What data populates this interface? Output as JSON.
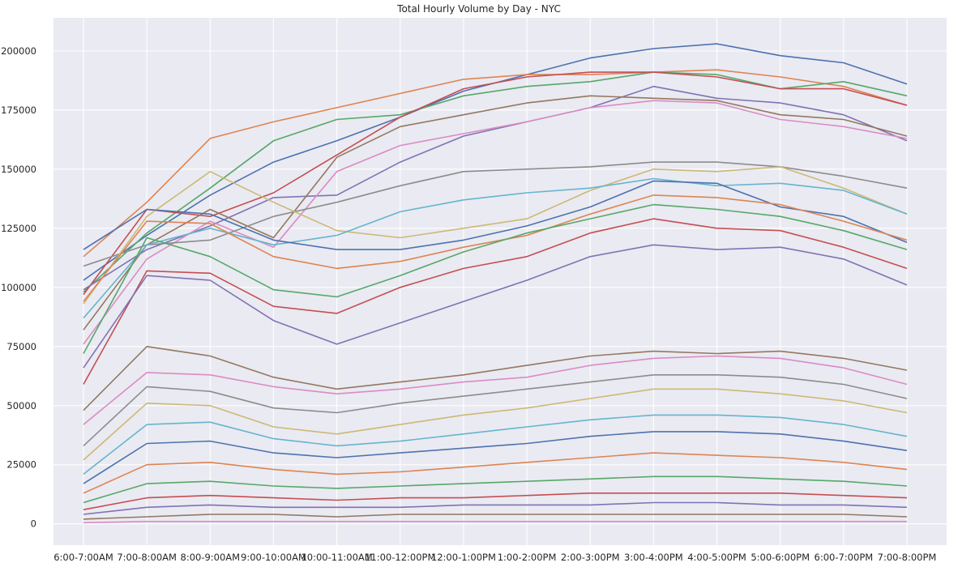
{
  "chart_data": {
    "type": "line",
    "title": "Total Hourly Volume by Day - NYC",
    "xlabel": "",
    "ylabel": "",
    "grid": true,
    "style": "seaborn-darkgrid",
    "background": "#EAEAF2",
    "x": [
      "6:00-7:00AM",
      "7:00-8:00AM",
      "8:00-9:00AM",
      "9:00-10:00AM",
      "10:00-11:00AM",
      "11:00-12:00PM",
      "12:00-1:00PM",
      "1:00-2:00PM",
      "2:00-3:00PM",
      "3:00-4:00PM",
      "4:00-5:00PM",
      "5:00-6:00PM",
      "6:00-7:00PM",
      "7:00-8:00PM"
    ],
    "ylim": [
      -9000,
      214000
    ],
    "yticks": [
      0,
      25000,
      50000,
      75000,
      100000,
      125000,
      150000,
      175000,
      200000
    ],
    "palette": [
      "#4C72B0",
      "#DD8452",
      "#55A868",
      "#C44E52",
      "#8172B3",
      "#937860",
      "#DA8BC3",
      "#8C8C8C",
      "#CCB974",
      "#64B5CD"
    ],
    "series": [
      {
        "values": [
          103000,
          122000,
          139000,
          153000,
          162000,
          172000,
          183000,
          190000,
          197000,
          201000,
          203000,
          198000,
          195000,
          186000
        ]
      },
      {
        "values": [
          113000,
          136000,
          163000,
          170000,
          176000,
          182000,
          188000,
          190000,
          190000,
          191000,
          192000,
          189000,
          185000,
          177000
        ]
      },
      {
        "values": [
          98000,
          123000,
          142000,
          162000,
          171000,
          173000,
          181000,
          185000,
          187000,
          191000,
          190000,
          184000,
          187000,
          181000
        ]
      },
      {
        "values": [
          97000,
          133000,
          130000,
          140000,
          156000,
          172000,
          184000,
          189000,
          191000,
          191000,
          189000,
          184000,
          184000,
          177000
        ]
      },
      {
        "values": [
          99000,
          116000,
          126000,
          138000,
          139000,
          153000,
          164000,
          170000,
          176000,
          185000,
          180000,
          178000,
          173000,
          162000
        ]
      },
      {
        "values": [
          82000,
          118000,
          133000,
          121000,
          155000,
          168000,
          173000,
          178000,
          181000,
          180000,
          179000,
          173000,
          171000,
          164000
        ]
      },
      {
        "values": [
          76000,
          112000,
          128000,
          117000,
          149000,
          160000,
          165000,
          170000,
          176000,
          179000,
          178000,
          171000,
          168000,
          163000
        ]
      },
      {
        "values": [
          109000,
          118000,
          120000,
          130000,
          136000,
          143000,
          149000,
          150000,
          151000,
          153000,
          153000,
          151000,
          147000,
          142000
        ]
      },
      {
        "values": [
          93000,
          130000,
          149000,
          136000,
          124000,
          121000,
          125000,
          129000,
          141000,
          150000,
          149000,
          151000,
          142000,
          131000
        ]
      },
      {
        "values": [
          87000,
          118000,
          125000,
          118000,
          122000,
          132000,
          137000,
          140000,
          142000,
          146000,
          143000,
          144000,
          141000,
          131000
        ]
      },
      {
        "values": [
          116000,
          133000,
          131000,
          120000,
          116000,
          116000,
          120000,
          126000,
          134000,
          145000,
          144000,
          134000,
          130000,
          119000
        ]
      },
      {
        "values": [
          94000,
          128000,
          127000,
          113000,
          108000,
          111000,
          117000,
          122000,
          131000,
          139000,
          138000,
          135000,
          128000,
          120000
        ]
      },
      {
        "values": [
          72000,
          121000,
          113000,
          99000,
          96000,
          105000,
          115000,
          123000,
          129000,
          135000,
          133000,
          130000,
          124000,
          116000
        ]
      },
      {
        "values": [
          59000,
          107000,
          106000,
          92000,
          89000,
          100000,
          108000,
          113000,
          123000,
          129000,
          125000,
          124000,
          117000,
          108000
        ]
      },
      {
        "values": [
          66000,
          105000,
          103000,
          86000,
          76000,
          85000,
          94000,
          103000,
          113000,
          118000,
          116000,
          117000,
          112000,
          101000
        ]
      },
      {
        "values": [
          48000,
          75000,
          71000,
          62000,
          57000,
          60000,
          63000,
          67000,
          71000,
          73000,
          72000,
          73000,
          70000,
          65000
        ]
      },
      {
        "values": [
          42000,
          64000,
          63000,
          58000,
          55000,
          57000,
          60000,
          62000,
          67000,
          70000,
          71000,
          70000,
          66000,
          59000
        ]
      },
      {
        "values": [
          33000,
          58000,
          56000,
          49000,
          47000,
          51000,
          54000,
          57000,
          60000,
          63000,
          63000,
          62000,
          59000,
          53000
        ]
      },
      {
        "values": [
          27000,
          51000,
          50000,
          41000,
          38000,
          42000,
          46000,
          49000,
          53000,
          57000,
          57000,
          55000,
          52000,
          47000
        ]
      },
      {
        "values": [
          21000,
          42000,
          43000,
          36000,
          33000,
          35000,
          38000,
          41000,
          44000,
          46000,
          46000,
          45000,
          42000,
          37000
        ]
      },
      {
        "values": [
          17000,
          34000,
          35000,
          30000,
          28000,
          30000,
          32000,
          34000,
          37000,
          39000,
          39000,
          38000,
          35000,
          31000
        ]
      },
      {
        "values": [
          13000,
          25000,
          26000,
          23000,
          21000,
          22000,
          24000,
          26000,
          28000,
          30000,
          29000,
          28000,
          26000,
          23000
        ]
      },
      {
        "values": [
          9000,
          17000,
          18000,
          16000,
          15000,
          16000,
          17000,
          18000,
          19000,
          20000,
          20000,
          19000,
          18000,
          16000
        ]
      },
      {
        "values": [
          6000,
          11000,
          12000,
          11000,
          10000,
          11000,
          11000,
          12000,
          13000,
          13000,
          13000,
          13000,
          12000,
          11000
        ]
      },
      {
        "values": [
          4000,
          7000,
          8000,
          7000,
          7000,
          7000,
          8000,
          8000,
          8000,
          9000,
          9000,
          8000,
          8000,
          7000
        ]
      },
      {
        "values": [
          2000,
          3000,
          4000,
          4000,
          3000,
          4000,
          4000,
          4000,
          4000,
          4000,
          4000,
          4000,
          4000,
          3000
        ]
      },
      {
        "values": [
          500,
          1000,
          1000,
          1000,
          1000,
          1000,
          1000,
          1000,
          1000,
          1000,
          1000,
          1000,
          1000,
          1000
        ]
      }
    ]
  }
}
